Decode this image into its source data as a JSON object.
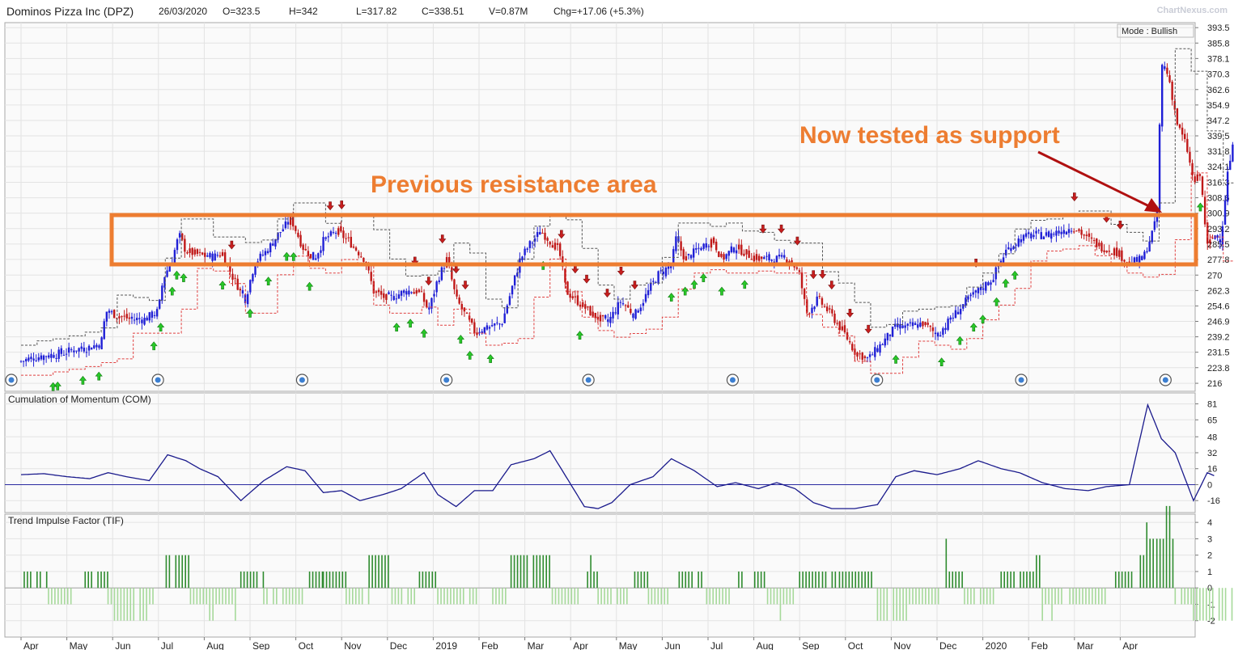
{
  "header": {
    "title": "Dominos Pizza Inc (DPZ)",
    "date": "26/03/2020",
    "open": "O=323.5",
    "high": "H=342",
    "low": "L=317.82",
    "close": "C=338.51",
    "volume": "V=0.87M",
    "change": "Chg=+17.06 (+5.3%)",
    "watermark": "ChartNexus.com"
  },
  "mode_label": "Mode : Bullish",
  "annotations": {
    "resistance": "Previous resistance area",
    "support": "Now tested as support",
    "color": "#ed7d31",
    "arrow_color": "#b01010"
  },
  "colors": {
    "up": "#1f1fd6",
    "down": "#c01818",
    "com_line": "#1a1a8c",
    "tif_up": "#2e8b2e",
    "tif_down": "#a6d99a",
    "grid": "#e3e3e3",
    "panel_bg": "#f7f7f7",
    "buy_arrow": "#28c928",
    "sell_arrow": "#c81e1e"
  },
  "x_axis": {
    "labels": [
      "Apr",
      "May",
      "Jun",
      "Jul",
      "Aug",
      "Sep",
      "Oct",
      "Nov",
      "Dec",
      "2019",
      "Feb",
      "Mar",
      "Apr",
      "May",
      "Jun",
      "Jul",
      "Aug",
      "Sep",
      "Oct",
      "Nov",
      "Dec",
      "2020",
      "Feb",
      "Mar",
      "Apr"
    ],
    "positions": [
      0.5,
      1.5,
      2.5,
      3.5,
      4.5,
      5.5,
      6.5,
      7.5,
      8.5,
      9.5,
      10.5,
      11.5,
      12.5,
      13.5,
      14.5,
      15.5,
      16.5,
      17.5,
      18.5,
      19.5,
      20.5,
      21.5,
      22.5,
      23.5,
      24.5
    ]
  },
  "chart_data": [
    {
      "type": "candlestick",
      "title": "Dominos Pizza Inc (DPZ)",
      "y_ticks": [
        393.5,
        385.8,
        378.1,
        370.3,
        362.6,
        354.9,
        347.2,
        339.5,
        331.8,
        324.1,
        316.3,
        308.6,
        300.9,
        293.2,
        285.5,
        277.8,
        270,
        262.3,
        254.6,
        246.9,
        239.2,
        231.5,
        223.8,
        216
      ],
      "ylim": [
        212,
        396
      ],
      "x_unit": "month index (0 = start of Apr 2018)",
      "close_path": [
        [
          0.0,
          227
        ],
        [
          0.3,
          229
        ],
        [
          0.6,
          230
        ],
        [
          0.9,
          231
        ],
        [
          1.2,
          233
        ],
        [
          1.5,
          234
        ],
        [
          1.75,
          236
        ],
        [
          1.85,
          252
        ],
        [
          2.1,
          250
        ],
        [
          2.4,
          248
        ],
        [
          2.7,
          248
        ],
        [
          3.0,
          252
        ],
        [
          3.1,
          268
        ],
        [
          3.3,
          278
        ],
        [
          3.45,
          290
        ],
        [
          3.6,
          282
        ],
        [
          3.9,
          280
        ],
        [
          4.2,
          279
        ],
        [
          4.4,
          281
        ],
        [
          4.6,
          270
        ],
        [
          4.9,
          258
        ],
        [
          5.1,
          276
        ],
        [
          5.4,
          283
        ],
        [
          5.6,
          290
        ],
        [
          5.9,
          298
        ],
        [
          6.15,
          284
        ],
        [
          6.4,
          278
        ],
        [
          6.6,
          287
        ],
        [
          6.9,
          292
        ],
        [
          7.2,
          286
        ],
        [
          7.5,
          278
        ],
        [
          7.7,
          262
        ],
        [
          8.0,
          258
        ],
        [
          8.4,
          262
        ],
        [
          8.7,
          262
        ],
        [
          8.9,
          252
        ],
        [
          9.1,
          268
        ],
        [
          9.3,
          278
        ],
        [
          9.5,
          258
        ],
        [
          9.7,
          250
        ],
        [
          9.9,
          242
        ],
        [
          10.2,
          244
        ],
        [
          10.5,
          246
        ],
        [
          10.7,
          262
        ],
        [
          10.9,
          278
        ],
        [
          11.1,
          285
        ],
        [
          11.35,
          292
        ],
        [
          11.6,
          286
        ],
        [
          11.75,
          282
        ],
        [
          11.9,
          262
        ],
        [
          12.2,
          256
        ],
        [
          12.5,
          250
        ],
        [
          12.8,
          246
        ],
        [
          13.1,
          257
        ],
        [
          13.4,
          250
        ],
        [
          13.6,
          258
        ],
        [
          13.9,
          270
        ],
        [
          14.2,
          275
        ],
        [
          14.3,
          288
        ],
        [
          14.5,
          278
        ],
        [
          14.8,
          283
        ],
        [
          15.1,
          288
        ],
        [
          15.3,
          278
        ],
        [
          15.6,
          284
        ],
        [
          15.9,
          280
        ],
        [
          16.2,
          278
        ],
        [
          16.5,
          278
        ],
        [
          16.8,
          278
        ],
        [
          17.0,
          270
        ],
        [
          17.15,
          251
        ],
        [
          17.4,
          258
        ],
        [
          17.7,
          250
        ],
        [
          18.0,
          240
        ],
        [
          18.2,
          232
        ],
        [
          18.5,
          228
        ],
        [
          18.8,
          236
        ],
        [
          19.1,
          244
        ],
        [
          19.4,
          244
        ],
        [
          19.7,
          246
        ],
        [
          20.0,
          240
        ],
        [
          20.3,
          248
        ],
        [
          20.6,
          256
        ],
        [
          20.9,
          262
        ],
        [
          21.2,
          268
        ],
        [
          21.5,
          282
        ],
        [
          21.8,
          288
        ],
        [
          22.1,
          290
        ],
        [
          22.4,
          290
        ],
        [
          22.7,
          292
        ],
        [
          23.0,
          294
        ],
        [
          23.3,
          288
        ],
        [
          23.6,
          284
        ],
        [
          23.9,
          282
        ],
        [
          24.2,
          276
        ],
        [
          24.5,
          278
        ],
        [
          24.8,
          298
        ],
        [
          24.9,
          375
        ],
        [
          25.05,
          370
        ],
        [
          25.25,
          345
        ],
        [
          25.45,
          334
        ],
        [
          25.6,
          316
        ],
        [
          25.75,
          320
        ],
        [
          25.9,
          284
        ],
        [
          26.05,
          290
        ],
        [
          26.2,
          288
        ],
        [
          26.35,
          322
        ],
        [
          26.5,
          338
        ]
      ]
    },
    {
      "type": "line",
      "title": "Cumulation of Momentum (COM)",
      "y_ticks": [
        81,
        65,
        48,
        32,
        16,
        0,
        -16
      ],
      "ylim": [
        -28,
        92
      ],
      "x_unit": "month index (0 = start of Apr 2018)",
      "points": [
        [
          0.0,
          10
        ],
        [
          0.5,
          11
        ],
        [
          1.0,
          8
        ],
        [
          1.5,
          6
        ],
        [
          1.9,
          12
        ],
        [
          2.3,
          8
        ],
        [
          2.8,
          4
        ],
        [
          3.2,
          30
        ],
        [
          3.6,
          24
        ],
        [
          3.9,
          16
        ],
        [
          4.3,
          8
        ],
        [
          4.8,
          -16
        ],
        [
          5.3,
          4
        ],
        [
          5.8,
          18
        ],
        [
          6.2,
          14
        ],
        [
          6.6,
          -8
        ],
        [
          7.0,
          -6
        ],
        [
          7.4,
          -16
        ],
        [
          7.9,
          -10
        ],
        [
          8.3,
          -4
        ],
        [
          8.8,
          12
        ],
        [
          9.1,
          -10
        ],
        [
          9.5,
          -22
        ],
        [
          9.9,
          -6
        ],
        [
          10.3,
          -6
        ],
        [
          10.7,
          20
        ],
        [
          11.2,
          26
        ],
        [
          11.55,
          34
        ],
        [
          11.9,
          8
        ],
        [
          12.3,
          -22
        ],
        [
          12.6,
          -24
        ],
        [
          12.9,
          -18
        ],
        [
          13.3,
          0
        ],
        [
          13.8,
          8
        ],
        [
          14.2,
          26
        ],
        [
          14.7,
          14
        ],
        [
          15.2,
          -2
        ],
        [
          15.6,
          2
        ],
        [
          16.1,
          -4
        ],
        [
          16.5,
          2
        ],
        [
          16.9,
          -4
        ],
        [
          17.3,
          -18
        ],
        [
          17.7,
          -24
        ],
        [
          18.2,
          -24
        ],
        [
          18.7,
          -20
        ],
        [
          19.1,
          8
        ],
        [
          19.5,
          14
        ],
        [
          20.0,
          10
        ],
        [
          20.5,
          16
        ],
        [
          20.9,
          24
        ],
        [
          21.4,
          16
        ],
        [
          21.8,
          12
        ],
        [
          22.3,
          2
        ],
        [
          22.8,
          -4
        ],
        [
          23.3,
          -6
        ],
        [
          23.7,
          -2
        ],
        [
          24.2,
          0
        ],
        [
          24.6,
          80
        ],
        [
          24.9,
          46
        ],
        [
          25.2,
          32
        ],
        [
          25.6,
          -16
        ],
        [
          25.9,
          12
        ],
        [
          26.1,
          8
        ]
      ]
    },
    {
      "type": "bar",
      "title": "Trend Impulse Factor (TIF)",
      "y_ticks": [
        4,
        3,
        2,
        1,
        0,
        -1,
        -2
      ],
      "ylim": [
        -3,
        4.5
      ],
      "x_unit": "month index (0 = start of Apr 2018)",
      "segments": [
        [
          0.0,
          0.6,
          1
        ],
        [
          0.6,
          1.2,
          -1
        ],
        [
          1.4,
          1.9,
          1
        ],
        [
          1.9,
          3.0,
          -1
        ],
        [
          3.1,
          3.7,
          2
        ],
        [
          3.7,
          4.7,
          -1
        ],
        [
          4.8,
          5.3,
          1
        ],
        [
          5.3,
          6.2,
          -1
        ],
        [
          6.3,
          6.6,
          1
        ],
        [
          6.6,
          7.1,
          1
        ],
        [
          7.1,
          7.6,
          -1
        ],
        [
          7.6,
          8.1,
          2
        ],
        [
          8.1,
          8.6,
          -1
        ],
        [
          8.7,
          9.1,
          1
        ],
        [
          9.1,
          10.0,
          -1
        ],
        [
          10.3,
          10.6,
          -1
        ],
        [
          10.7,
          11.6,
          2
        ],
        [
          11.6,
          12.2,
          -1
        ],
        [
          12.3,
          12.6,
          1
        ],
        [
          12.6,
          13.3,
          -1
        ],
        [
          13.4,
          13.7,
          1
        ],
        [
          13.7,
          14.2,
          -1
        ],
        [
          14.3,
          14.9,
          1
        ],
        [
          14.9,
          15.5,
          -1
        ],
        [
          15.6,
          16.3,
          1
        ],
        [
          16.3,
          16.9,
          -1
        ],
        [
          17.0,
          17.5,
          1
        ],
        [
          17.5,
          17.8,
          1
        ],
        [
          17.8,
          18.6,
          1
        ],
        [
          18.7,
          19.4,
          -2
        ],
        [
          19.4,
          20.1,
          -1
        ],
        [
          20.2,
          20.6,
          1
        ],
        [
          20.6,
          21.3,
          -1
        ],
        [
          21.4,
          22.3,
          1
        ],
        [
          22.3,
          22.8,
          -1
        ],
        [
          22.9,
          23.8,
          -1
        ],
        [
          23.9,
          24.3,
          1
        ],
        [
          24.3,
          24.8,
          2
        ],
        [
          24.8,
          25.2,
          3
        ],
        [
          25.2,
          25.6,
          -1
        ],
        [
          25.6,
          26.5,
          -2
        ]
      ],
      "highlights": [
        [
          2.0,
          2.8
        ],
        [
          4.1,
          4.25
        ],
        [
          4.65,
          4.75
        ],
        [
          12.4,
          12.5
        ],
        [
          16.55,
          16.65
        ],
        [
          20.05,
          20.2
        ],
        [
          22.15,
          22.3
        ],
        [
          22.45,
          22.55
        ],
        [
          24.55,
          24.75
        ],
        [
          24.95,
          25.1
        ]
      ]
    }
  ]
}
